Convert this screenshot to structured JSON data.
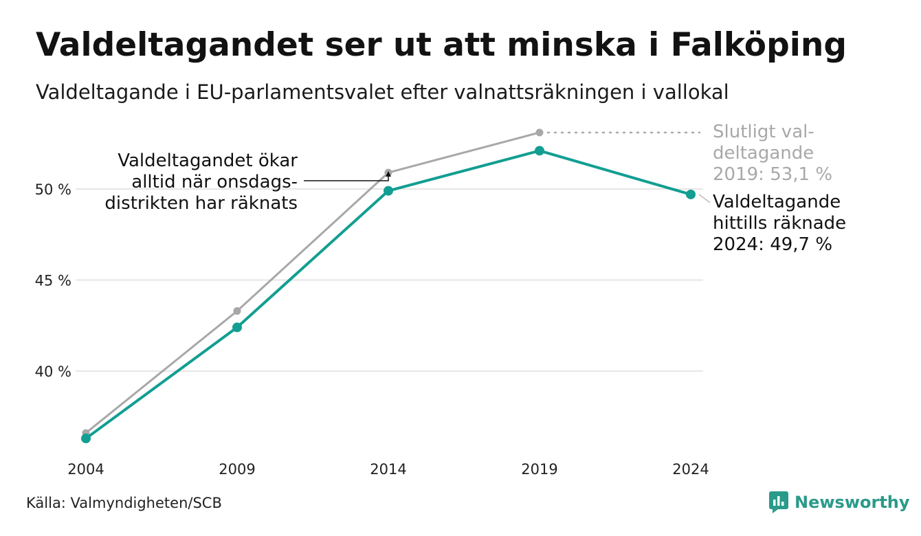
{
  "header": {
    "title": "Valdeltagandet ser ut att minska i Falköping",
    "subtitle": "Valdeltagande i EU-parlamentsvalet efter valnattsräkningen i vallokal"
  },
  "footer": {
    "source": "Källa: Valmyndigheten/SCB",
    "logo_text": "Newsworthy"
  },
  "colors": {
    "counted": "#129e92",
    "final": "#a8a8a8",
    "grid": "#e6e6e6",
    "logo": "#2a9a8a"
  },
  "chart_data": {
    "type": "line",
    "x": [
      "2004",
      "2009",
      "2014",
      "2019",
      "2024"
    ],
    "ylim": [
      36,
      53.5
    ],
    "yticks": [
      40,
      45,
      50
    ],
    "ytick_labels": [
      "40 %",
      "45 %",
      "50 %"
    ],
    "grid": true,
    "series": [
      {
        "key": "final",
        "values": [
          36.6,
          43.3,
          50.9,
          53.1,
          null
        ]
      },
      {
        "key": "counted",
        "values": [
          36.3,
          42.4,
          49.9,
          52.1,
          49.7
        ]
      }
    ],
    "annotations": {
      "onsdag": [
        "Valdeltagandet ökar",
        "alltid när onsdags-",
        "distrikten har räknats"
      ],
      "final_label": [
        "Slutligt val-",
        "deltagande",
        "2019: 53,1 %"
      ],
      "counted_label": [
        "Valdeltagande",
        "hittills räknade",
        "2024: 49,7 %"
      ]
    }
  }
}
